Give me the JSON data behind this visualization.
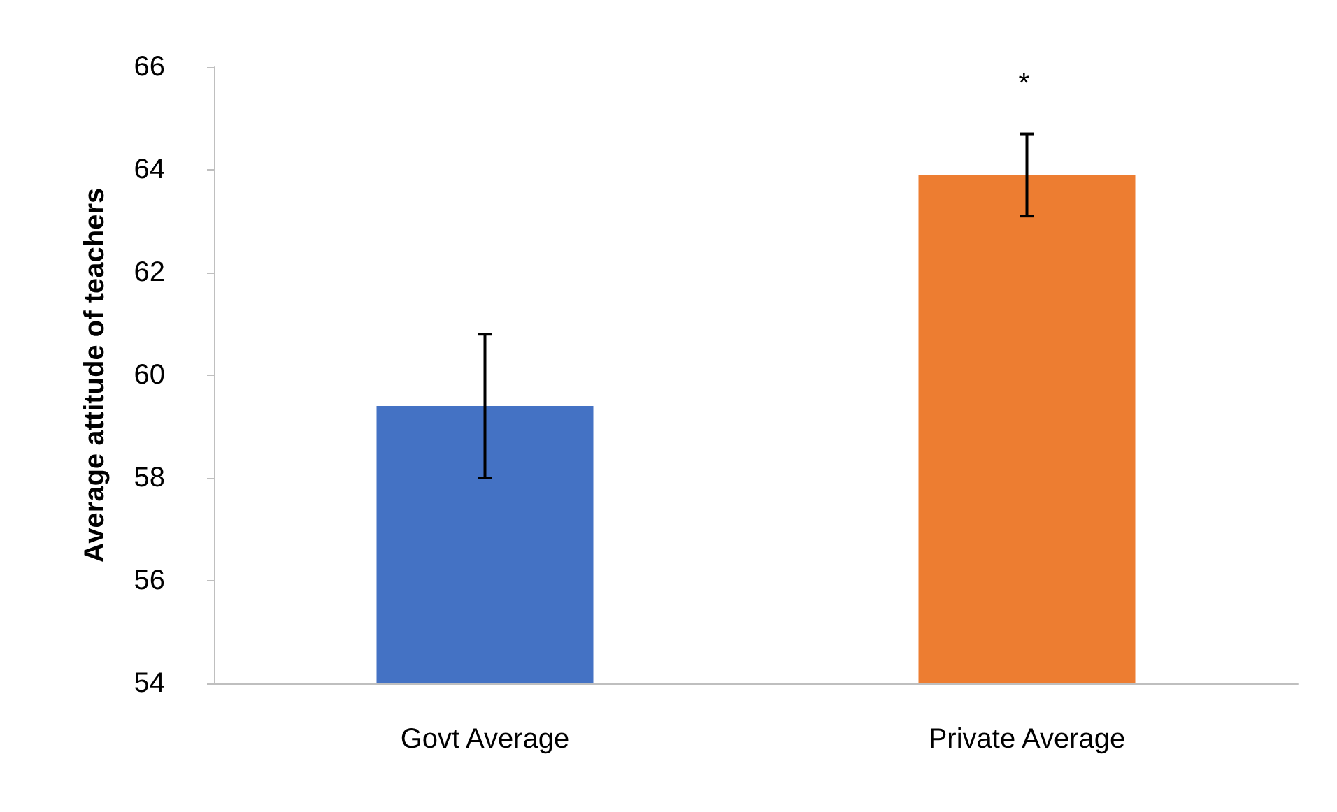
{
  "chart_data": {
    "type": "bar",
    "ylabel": "Average attitude of teachers",
    "categories": [
      "Govt Average",
      "Private Average"
    ],
    "values": [
      59.4,
      63.9
    ],
    "colors": [
      "#4472c4",
      "#ed7d31"
    ],
    "errors": [
      [
        58.0,
        60.8
      ],
      [
        63.1,
        64.7
      ]
    ],
    "ylim": [
      54,
      66
    ],
    "yticks": [
      54,
      56,
      58,
      60,
      62,
      64,
      66
    ],
    "grid": false,
    "annotations": [
      "*"
    ]
  }
}
